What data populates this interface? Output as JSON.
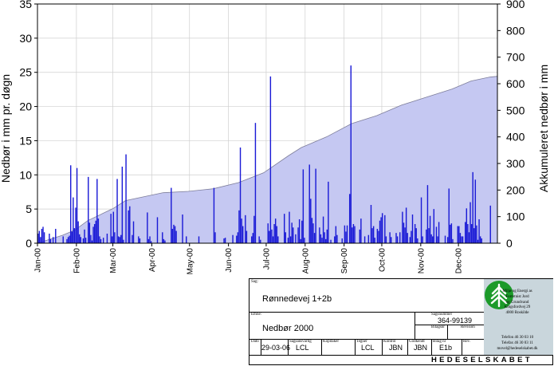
{
  "chart_data": {
    "type": "bar",
    "ylabel": "Nedbør i mm pr. døgn",
    "y2label": "Akkumuleret nedbør i mm",
    "ylim": [
      0,
      35
    ],
    "y2lim": [
      0,
      900
    ],
    "yticks": [
      "0",
      "5",
      "10",
      "15",
      "20",
      "25",
      "30",
      "35"
    ],
    "y2ticks": [
      "0",
      "100",
      "200",
      "300",
      "400",
      "500",
      "600",
      "700",
      "800",
      "900"
    ],
    "months": [
      "Jan-00",
      "Feb-00",
      "Mar-00",
      "Apr-00",
      "May-00",
      "Jun-00",
      "Jul-00",
      "Aug-00",
      "Sep-00",
      "Oct-00",
      "Nov-00",
      "Dec-00"
    ],
    "grid": true,
    "bar_color": "#1a1ad6",
    "area_fill": "#c5c8f2",
    "area_line": "#7d7d9a",
    "daily": [
      [
        0,
        1.4
      ],
      [
        1,
        1.8
      ],
      [
        2,
        0.9
      ],
      [
        3,
        2.1
      ],
      [
        4,
        2.4
      ],
      [
        5,
        1.6
      ],
      [
        9,
        1.4
      ],
      [
        10,
        0.6
      ],
      [
        12,
        0.9
      ],
      [
        14,
        2.1
      ],
      [
        20,
        1.0
      ],
      [
        23,
        0.6
      ],
      [
        24,
        0.9
      ],
      [
        25,
        1.1
      ],
      [
        26,
        11.4
      ],
      [
        27,
        1.7
      ],
      [
        28,
        6.7
      ],
      [
        29,
        2.2
      ],
      [
        30,
        5.2
      ],
      [
        31,
        11.0
      ],
      [
        32,
        3.2
      ],
      [
        33,
        1.3
      ],
      [
        34,
        0.9
      ],
      [
        36,
        0.7
      ],
      [
        37,
        2.0
      ],
      [
        38,
        0.8
      ],
      [
        40,
        9.7
      ],
      [
        41,
        3.0
      ],
      [
        42,
        1.2
      ],
      [
        43,
        0.4
      ],
      [
        44,
        2.4
      ],
      [
        45,
        2.8
      ],
      [
        46,
        3.3
      ],
      [
        47,
        9.4
      ],
      [
        48,
        3.6
      ],
      [
        49,
        1.0
      ],
      [
        50,
        0.6
      ],
      [
        52,
        0.8
      ],
      [
        55,
        1.4
      ],
      [
        58,
        4.3
      ],
      [
        59,
        1.0
      ],
      [
        60,
        4.6
      ],
      [
        61,
        1.6
      ],
      [
        63,
        9.4
      ],
      [
        64,
        1.0
      ],
      [
        65,
        0.9
      ],
      [
        66,
        1.2
      ],
      [
        67,
        11.2
      ],
      [
        68,
        0.5
      ],
      [
        70,
        13.0
      ],
      [
        72,
        4.8
      ],
      [
        73,
        5.4
      ],
      [
        75,
        1.2
      ],
      [
        76,
        3.2
      ],
      [
        80,
        1.0
      ],
      [
        81,
        0.7
      ],
      [
        87,
        4.5
      ],
      [
        88,
        0.6
      ],
      [
        89,
        1.0
      ],
      [
        90,
        0.3
      ],
      [
        95,
        3.8
      ],
      [
        99,
        1.6
      ],
      [
        100,
        0.6
      ],
      [
        101,
        0.4
      ],
      [
        106,
        8.1
      ],
      [
        107,
        2.1
      ],
      [
        108,
        2.7
      ],
      [
        109,
        2.5
      ],
      [
        110,
        1.8
      ],
      [
        115,
        4.2
      ],
      [
        118,
        1.0
      ],
      [
        128,
        1.0
      ],
      [
        140,
        8.1
      ],
      [
        141,
        1.6
      ],
      [
        148,
        0.7
      ],
      [
        149,
        0.8
      ],
      [
        155,
        1.2
      ],
      [
        158,
        1.1
      ],
      [
        159,
        1.6
      ],
      [
        160,
        4.8
      ],
      [
        161,
        14.0
      ],
      [
        162,
        3.6
      ],
      [
        163,
        2.5
      ],
      [
        165,
        4.1
      ],
      [
        166,
        1.8
      ],
      [
        170,
        1.0
      ],
      [
        171,
        1.5
      ],
      [
        172,
        4.0
      ],
      [
        173,
        17.6
      ],
      [
        176,
        1.0
      ],
      [
        177,
        0.5
      ],
      [
        183,
        2.9
      ],
      [
        184,
        1.8
      ],
      [
        185,
        24.4
      ],
      [
        186,
        2.0
      ],
      [
        187,
        1.0
      ],
      [
        188,
        2.8
      ],
      [
        189,
        3.6
      ],
      [
        190,
        2.5
      ],
      [
        191,
        1.0
      ],
      [
        196,
        4.3
      ],
      [
        197,
        1.6
      ],
      [
        199,
        0.8
      ],
      [
        200,
        4.6
      ],
      [
        201,
        1.0
      ],
      [
        202,
        3.0
      ],
      [
        203,
        2.3
      ],
      [
        205,
        1.3
      ],
      [
        207,
        2.3
      ],
      [
        208,
        3.5
      ],
      [
        209,
        0.6
      ],
      [
        210,
        3.3
      ],
      [
        211,
        10.8
      ],
      [
        212,
        0.8
      ],
      [
        216,
        11.5
      ],
      [
        217,
        6.5
      ],
      [
        218,
        3.7
      ],
      [
        219,
        2.9
      ],
      [
        220,
        1.5
      ],
      [
        221,
        10.9
      ],
      [
        224,
        2.3
      ],
      [
        225,
        1.3
      ],
      [
        226,
        0.8
      ],
      [
        227,
        3.9
      ],
      [
        228,
        1.6
      ],
      [
        229,
        0.6
      ],
      [
        230,
        2.0
      ],
      [
        231,
        9.0
      ],
      [
        233,
        0.5
      ],
      [
        236,
        1.0
      ],
      [
        237,
        2.5
      ],
      [
        238,
        1.2
      ],
      [
        242,
        0.7
      ],
      [
        244,
        2.6
      ],
      [
        245,
        1.7
      ],
      [
        246,
        2.6
      ],
      [
        248,
        7.2
      ],
      [
        249,
        26.0
      ],
      [
        250,
        2.3
      ],
      [
        251,
        2.8
      ],
      [
        252,
        2.5
      ],
      [
        256,
        2.0
      ],
      [
        257,
        3.6
      ],
      [
        260,
        1.0
      ],
      [
        263,
        1.2
      ],
      [
        265,
        5.6
      ],
      [
        266,
        2.2
      ],
      [
        267,
        2.5
      ],
      [
        268,
        0.8
      ],
      [
        270,
        2.1
      ],
      [
        271,
        1.8
      ],
      [
        272,
        3.3
      ],
      [
        273,
        3.8
      ],
      [
        274,
        4.4
      ],
      [
        276,
        4.1
      ],
      [
        277,
        1.0
      ],
      [
        280,
        1.6
      ],
      [
        281,
        0.9
      ],
      [
        285,
        1.5
      ],
      [
        286,
        1.0
      ],
      [
        288,
        1.6
      ],
      [
        290,
        4.6
      ],
      [
        291,
        3.0
      ],
      [
        292,
        2.3
      ],
      [
        293,
        5.2
      ],
      [
        294,
        1.5
      ],
      [
        296,
        0.9
      ],
      [
        297,
        1.8
      ],
      [
        298,
        4.2
      ],
      [
        300,
        2.8
      ],
      [
        301,
        2.2
      ],
      [
        302,
        0.7
      ],
      [
        305,
        6.7
      ],
      [
        306,
        1.0
      ],
      [
        309,
        2.0
      ],
      [
        310,
        8.5
      ],
      [
        311,
        2.2
      ],
      [
        312,
        4.0
      ],
      [
        313,
        1.3
      ],
      [
        314,
        1.0
      ],
      [
        315,
        5.0
      ],
      [
        317,
        2.4
      ],
      [
        318,
        1.0
      ],
      [
        319,
        3.1
      ],
      [
        324,
        1.1
      ],
      [
        326,
        0.9
      ],
      [
        327,
        8.0
      ],
      [
        328,
        2.7
      ],
      [
        329,
        2.9
      ],
      [
        330,
        0.6
      ],
      [
        334,
        2.5
      ],
      [
        335,
        2.5
      ],
      [
        336,
        1.5
      ],
      [
        337,
        1.0
      ],
      [
        338,
        1.0
      ],
      [
        340,
        3.1
      ],
      [
        341,
        5.1
      ],
      [
        342,
        2.8
      ],
      [
        343,
        1.6
      ],
      [
        344,
        6.0
      ],
      [
        345,
        2.8
      ],
      [
        346,
        10.4
      ],
      [
        347,
        2.2
      ],
      [
        348,
        9.3
      ],
      [
        349,
        2.6
      ],
      [
        350,
        0.5
      ],
      [
        351,
        3.5
      ],
      [
        352,
        1.0
      ],
      [
        353,
        0.7
      ],
      [
        360,
        5.5
      ]
    ],
    "cumulative": [
      [
        0,
        0
      ],
      [
        20,
        30
      ],
      [
        30,
        50
      ],
      [
        40,
        85
      ],
      [
        60,
        130
      ],
      [
        70,
        160
      ],
      [
        100,
        190
      ],
      [
        120,
        195
      ],
      [
        140,
        205
      ],
      [
        160,
        228
      ],
      [
        180,
        265
      ],
      [
        200,
        330
      ],
      [
        210,
        360
      ],
      [
        230,
        400
      ],
      [
        250,
        450
      ],
      [
        270,
        480
      ],
      [
        290,
        520
      ],
      [
        310,
        550
      ],
      [
        330,
        580
      ],
      [
        345,
        610
      ],
      [
        360,
        625
      ],
      [
        366,
        628
      ]
    ]
  },
  "title_block": {
    "sag_label": "Sag:",
    "sag_value": "Rønnedevej 1+2b",
    "emne_label": "Emne:",
    "emne_value": "Nedbør 2000",
    "sagsnummer_label": "Sagsnummer",
    "sagsnummer_value": "364-99139",
    "bilagsnr_label": "Bilagsnr",
    "revision_label": "Revision",
    "dato_label": "Dato",
    "dato_value": "29-03-06",
    "sagsansvarlig_label": "Sagsansvarlig",
    "sagsansvarlig_value": "LCL",
    "kopitaker_label": "Kopitaker",
    "tegner_label": "Tegner",
    "tegner_value": "LCL",
    "kontrol_label": "Kontrol",
    "kontrol_value": "JBN",
    "godkendt_label": "Godkendt",
    "godkendt_value": "JBN",
    "bilag_label": "Bilag nr",
    "bilag_value": "E1b",
    "rev_label": "Rev.",
    "company_banner": "HEDESELSKABET",
    "company_lines": [
      "Miljø og Energi as",
      "Forretnist Jord",
      "og Grundvand",
      "Kingsfordvej 29",
      "4000 Roskilde"
    ],
    "contact_lines": [
      "Telefon 46 30 03 10",
      "Telefax 46 30 03 11",
      "movel@hedeselskabet.dk"
    ]
  }
}
